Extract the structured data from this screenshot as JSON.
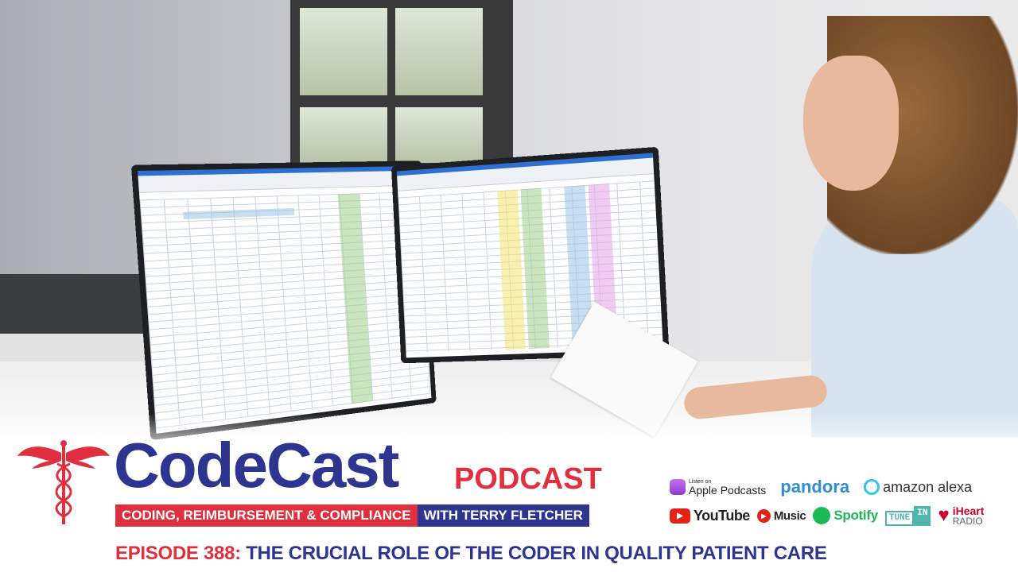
{
  "brand": {
    "name": "CodeCast",
    "suffix": "PODCAST",
    "tagline_left": "CODING, REIMBURSEMENT & COMPLIANCE",
    "tagline_right": "WITH TERRY FLETCHER"
  },
  "episode": {
    "label": "EPISODE 388:",
    "title": "THE CRUCIAL ROLE OF THE CODER IN QUALITY PATIENT CARE"
  },
  "services": {
    "apple": {
      "small": "Listen on",
      "name": "Apple Podcasts"
    },
    "pandora": "pandora",
    "alexa": "amazon alexa",
    "youtube": "YouTube",
    "music": "Music",
    "spotify": "Spotify",
    "tunein_a": "TUNE",
    "tunein_b": "IN",
    "iheart_a": "iHeart",
    "iheart_b": "RADIO"
  },
  "colors": {
    "brand_blue": "#2d3590",
    "brand_red": "#e03040"
  }
}
